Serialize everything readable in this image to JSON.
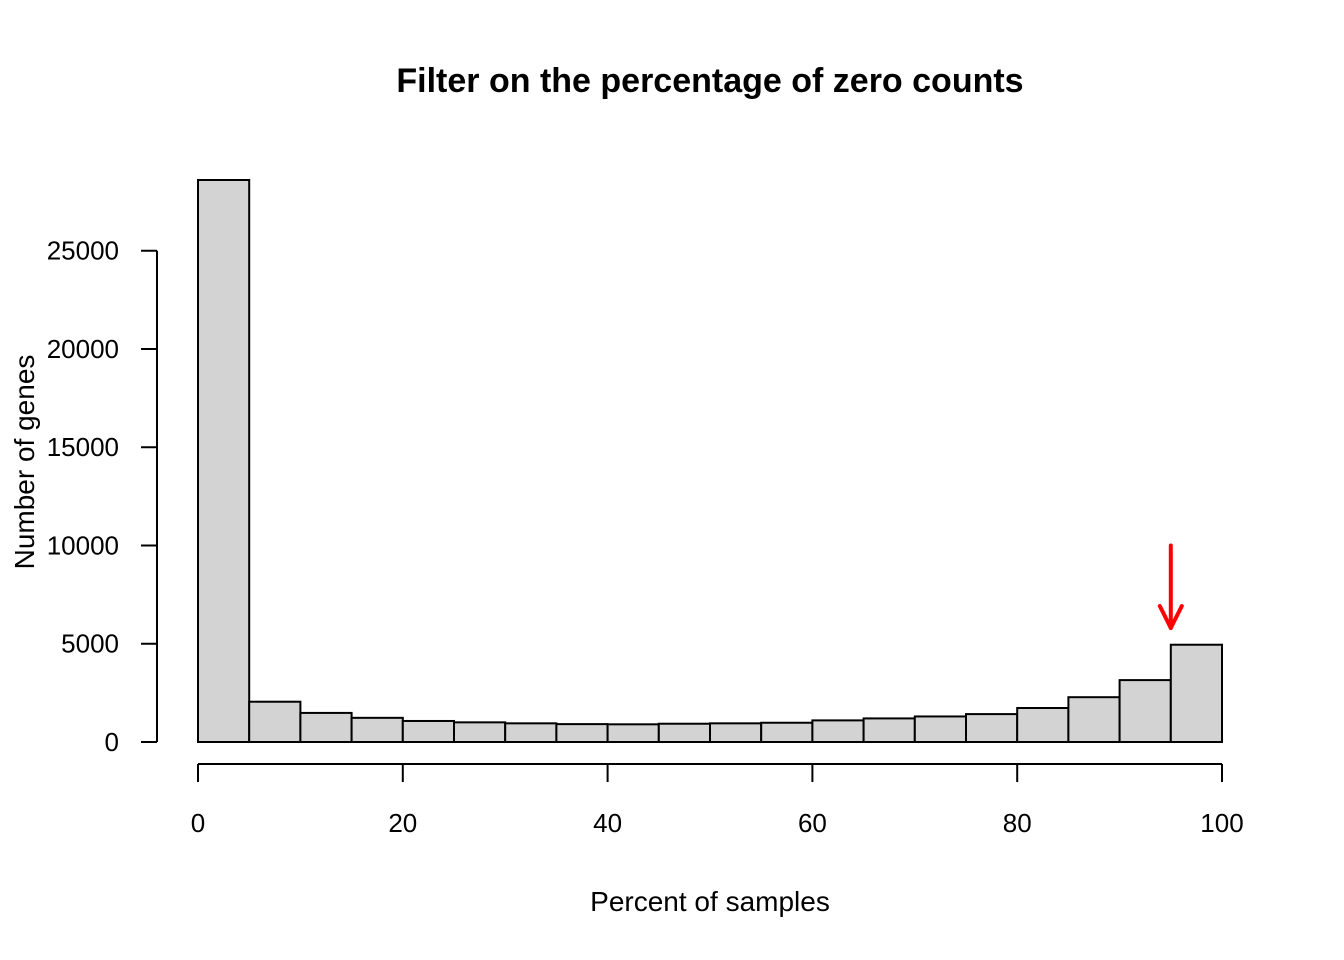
{
  "chart_data": {
    "type": "bar",
    "title": "Filter on the percentage of zero counts",
    "xlabel": "Percent of samples",
    "ylabel": "Number of genes",
    "bin_edges": [
      0,
      5,
      10,
      15,
      20,
      25,
      30,
      35,
      40,
      45,
      50,
      55,
      60,
      65,
      70,
      75,
      80,
      85,
      90,
      95,
      100
    ],
    "values": [
      28600,
      2050,
      1480,
      1230,
      1070,
      1000,
      950,
      910,
      900,
      930,
      950,
      980,
      1100,
      1200,
      1300,
      1420,
      1730,
      2280,
      3150,
      4950
    ],
    "xlim": [
      0,
      100
    ],
    "ylim": [
      0,
      28600
    ],
    "x_ticks": [
      0,
      20,
      40,
      60,
      80,
      100
    ],
    "x_tick_labels": [
      "0",
      "20",
      "40",
      "60",
      "80",
      "100"
    ],
    "y_ticks": [
      0,
      5000,
      10000,
      15000,
      20000,
      25000
    ],
    "y_tick_labels": [
      "0",
      "5000",
      "10000",
      "15000",
      "20000",
      "25000"
    ],
    "bar_fill": "#d3d3d3",
    "bar_stroke": "#000000",
    "annotation": {
      "type": "arrow",
      "color": "#ff0000",
      "x": 95,
      "y_from": 10000,
      "y_to": 5800
    }
  }
}
